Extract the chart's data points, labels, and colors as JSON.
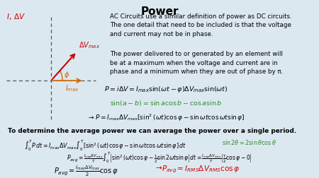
{
  "title": "Power",
  "bg_color": "#dce8f0",
  "title_color": "#000000",
  "title_fontsize": 11,
  "text_color": "#000000",
  "red_color": "#cc0000",
  "green_color": "#2e8b2e",
  "orange_color": "#cc6600",
  "paragraph1": "AC Circuits use a similar definition of power as DC circuits.\nThe one detail that need to be included is that the voltage\nand current may not be in phase.",
  "paragraph2": "The power delivered to or generated by an element will\nbe at a maximum when the voltage and current are in\nphase and a minimum when they are out of phase by π."
}
